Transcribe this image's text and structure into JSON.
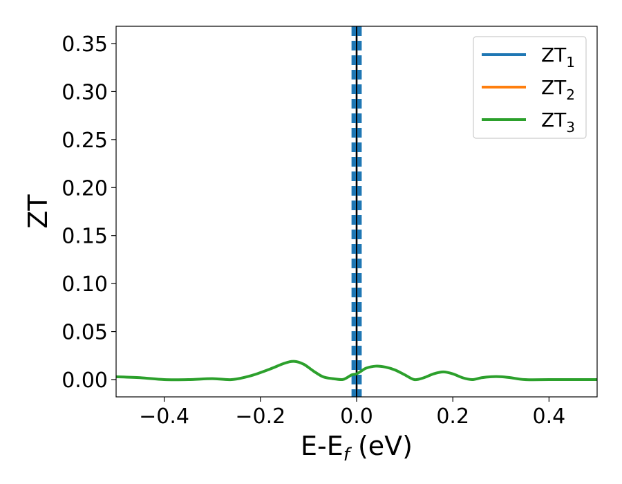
{
  "chart_data": {
    "type": "line",
    "xlabel": {
      "main": "E-E",
      "sub": "f",
      "unit": " (eV)"
    },
    "ylabel": "ZT",
    "xlim": [
      -0.5,
      0.5
    ],
    "ylim": [
      -0.018,
      0.368
    ],
    "x_ticks": [
      {
        "value": -0.4,
        "label": "−0.4"
      },
      {
        "value": -0.2,
        "label": "−0.2"
      },
      {
        "value": 0.0,
        "label": "0.0"
      },
      {
        "value": 0.2,
        "label": "0.2"
      },
      {
        "value": 0.4,
        "label": "0.4"
      }
    ],
    "y_ticks": [
      {
        "value": 0.0,
        "label": "0.00"
      },
      {
        "value": 0.05,
        "label": "0.05"
      },
      {
        "value": 0.1,
        "label": "0.10"
      },
      {
        "value": 0.15,
        "label": "0.15"
      },
      {
        "value": 0.2,
        "label": "0.20"
      },
      {
        "value": 0.25,
        "label": "0.25"
      },
      {
        "value": 0.3,
        "label": "0.30"
      },
      {
        "value": 0.35,
        "label": "0.35"
      }
    ],
    "legend": {
      "position": "top-right",
      "entries": [
        {
          "name": "ZT",
          "sub": "1",
          "color": "#1f77b4"
        },
        {
          "name": "ZT",
          "sub": "2",
          "color": "#ff7f0e"
        },
        {
          "name": "ZT",
          "sub": "3",
          "color": "#2ca02c"
        }
      ]
    },
    "series": [
      {
        "name": "ZT3",
        "color": "#2ca02c",
        "x": [
          -0.5,
          -0.45,
          -0.4,
          -0.35,
          -0.3,
          -0.26,
          -0.22,
          -0.18,
          -0.15,
          -0.13,
          -0.11,
          -0.09,
          -0.07,
          -0.05,
          -0.03,
          -0.02,
          -0.01,
          0.0,
          0.01,
          0.02,
          0.04,
          0.06,
          0.08,
          0.1,
          0.12,
          0.14,
          0.16,
          0.18,
          0.2,
          0.22,
          0.24,
          0.26,
          0.28,
          0.3,
          0.32,
          0.35,
          0.4,
          0.45,
          0.5
        ],
        "y": [
          0.003,
          0.002,
          0.0,
          0.0,
          0.001,
          0.0,
          0.004,
          0.011,
          0.017,
          0.019,
          0.016,
          0.009,
          0.003,
          0.001,
          0.0,
          0.002,
          0.005,
          0.006,
          0.009,
          0.012,
          0.014,
          0.013,
          0.01,
          0.005,
          0.0,
          0.002,
          0.006,
          0.008,
          0.006,
          0.002,
          0.0,
          0.002,
          0.003,
          0.003,
          0.002,
          0.0,
          0.0,
          0.0,
          0.0
        ]
      }
    ],
    "vlines": [
      {
        "x": 0.0,
        "style": "solid",
        "color": "#000000"
      },
      {
        "x": -0.008,
        "style": "dashed",
        "color": "#1f77b4"
      },
      {
        "x": 0.008,
        "style": "dashed",
        "color": "#1f77b4"
      },
      {
        "x": -0.004,
        "style": "dashed",
        "color": "#1f77b4"
      },
      {
        "x": 0.004,
        "style": "dashed",
        "color": "#1f77b4"
      }
    ]
  }
}
